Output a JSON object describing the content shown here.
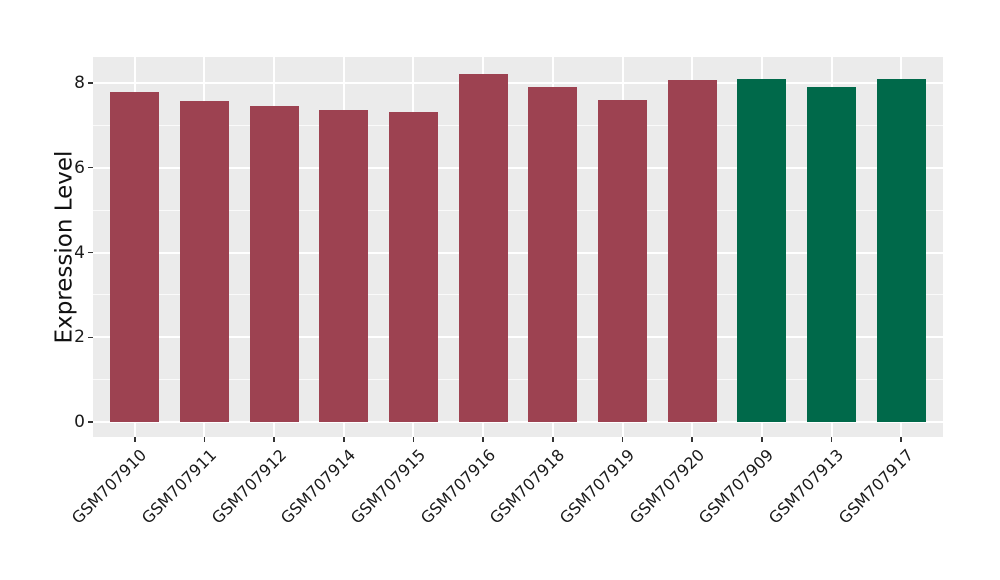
{
  "figure": {
    "background": "#FFFFFF",
    "panel_background": "#EBEBEB",
    "grid_major_color": "#FFFFFF",
    "grid_minor_color": "#FFFFFF",
    "tick_mark_color": "#333333",
    "text_color": "#1A1A1A"
  },
  "chart_data": {
    "type": "bar",
    "title": "",
    "xlabel": "",
    "ylabel": "Expression Level",
    "categories": [
      "GSM707910",
      "GSM707911",
      "GSM707912",
      "GSM707914",
      "GSM707915",
      "GSM707916",
      "GSM707918",
      "GSM707919",
      "GSM707920",
      "GSM707909",
      "GSM707913",
      "GSM707917"
    ],
    "values": [
      7.79,
      7.57,
      7.46,
      7.36,
      7.31,
      8.21,
      7.9,
      7.6,
      8.06,
      8.1,
      7.91,
      8.08
    ],
    "bar_colors": [
      "#9D4251",
      "#9D4251",
      "#9D4251",
      "#9D4251",
      "#9D4251",
      "#9D4251",
      "#9D4251",
      "#9D4251",
      "#9D4251",
      "#00694A",
      "#00694A",
      "#00694A"
    ],
    "yticks": [
      0,
      2,
      4,
      6,
      8
    ],
    "yticks_minor": [
      1,
      3,
      5,
      7
    ],
    "ylim": [
      -0.35,
      8.61
    ],
    "bar_width_fraction": 0.7,
    "x_label_rotation_deg": 45,
    "grid": true,
    "legend": "none"
  }
}
